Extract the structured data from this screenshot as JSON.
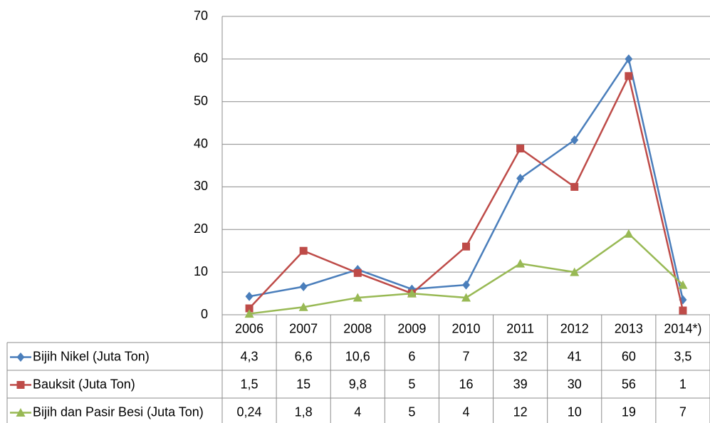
{
  "chart_data": {
    "type": "line",
    "categories": [
      "2006",
      "2007",
      "2008",
      "2009",
      "2010",
      "2011",
      "2012",
      "2013",
      "2014*)"
    ],
    "series": [
      {
        "name": "Bijih Nikel (Juta Ton)",
        "color": "#4a7ebb",
        "marker": "diamond",
        "values": [
          4.3,
          6.6,
          10.6,
          6,
          7,
          32,
          41,
          60,
          3.5
        ],
        "value_labels": [
          "4,3",
          "6,6",
          "10,6",
          "6",
          "7",
          "32",
          "41",
          "60",
          "3,5"
        ]
      },
      {
        "name": "Bauksit (Juta Ton)",
        "color": "#be4b48",
        "marker": "square",
        "values": [
          1.5,
          15,
          9.8,
          5,
          16,
          39,
          30,
          56,
          1
        ],
        "value_labels": [
          "1,5",
          "15",
          "9,8",
          "5",
          "16",
          "39",
          "30",
          "56",
          "1"
        ]
      },
      {
        "name": "Bijih dan Pasir Besi (Juta Ton)",
        "color": "#98b954",
        "marker": "triangle",
        "values": [
          0.24,
          1.8,
          4,
          5,
          4,
          12,
          10,
          19,
          7
        ],
        "value_labels": [
          "0,24",
          "1,8",
          "4",
          "5",
          "4",
          "12",
          "10",
          "19",
          "7"
        ]
      }
    ],
    "ylim": [
      0,
      70
    ],
    "yticks": [
      0,
      10,
      20,
      30,
      40,
      50,
      60,
      70
    ],
    "grid": true
  }
}
